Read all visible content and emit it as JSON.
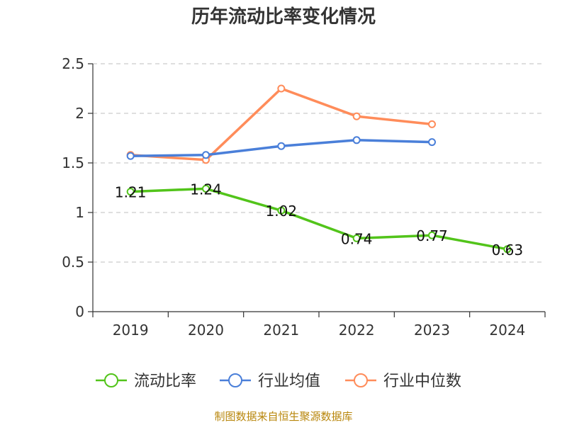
{
  "chart_data": {
    "type": "line",
    "title": "历年流动比率变化情况",
    "categories": [
      "2019",
      "2020",
      "2021",
      "2022",
      "2023",
      "2024"
    ],
    "ylim": [
      0,
      2.5
    ],
    "yticks": [
      "0",
      "0.5",
      "1",
      "1.5",
      "2",
      "2.5"
    ],
    "grid": true,
    "legend_position": "bottom",
    "series": [
      {
        "name": "流动比率",
        "color": "#52c41a",
        "values": [
          1.21,
          1.24,
          1.02,
          0.74,
          0.77,
          0.63
        ],
        "labels": [
          "1.21",
          "1.24",
          "1.02",
          "0.74",
          "0.77",
          "0.63"
        ]
      },
      {
        "name": "行业均值",
        "color": "#4a7fd9",
        "values": [
          1.57,
          1.58,
          1.67,
          1.73,
          1.71,
          null
        ]
      },
      {
        "name": "行业中位数",
        "color": "#ff8c5a",
        "values": [
          1.58,
          1.53,
          2.25,
          1.97,
          1.89,
          null
        ]
      }
    ]
  },
  "footer": {
    "source": "制图数据来自恒生聚源数据库"
  }
}
